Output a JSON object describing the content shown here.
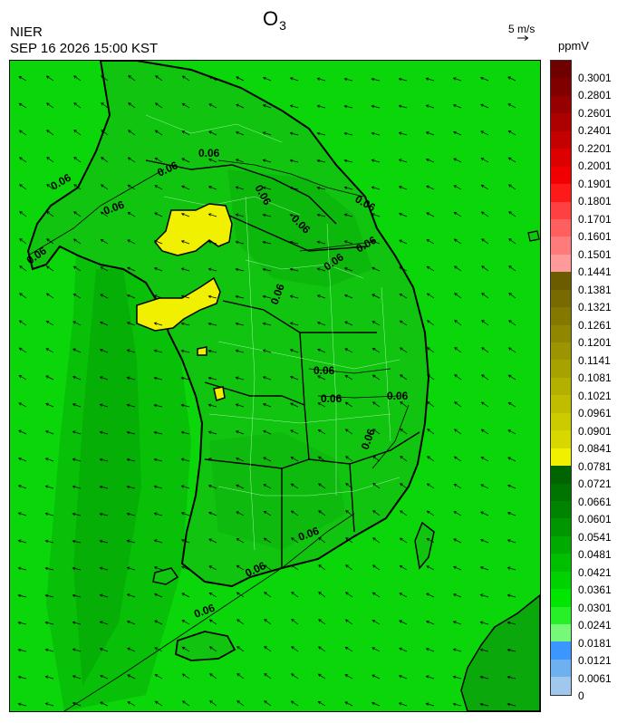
{
  "header": {
    "organization": "NIER",
    "datetime": "SEP 16 2026 15:00 KST",
    "title_main": "O",
    "title_sub": "3",
    "wind_reference": "5 m/s",
    "unit": "ppmV"
  },
  "colorbar": {
    "colors": [
      "#6e0000",
      "#800000",
      "#960000",
      "#ad0000",
      "#c40000",
      "#dc0000",
      "#f00000",
      "#ff1a1a",
      "#ff4040",
      "#ff5f5f",
      "#ff7a7a",
      "#ff9a9a",
      "#6b5c00",
      "#786a00",
      "#847800",
      "#908600",
      "#9c9400",
      "#a8a200",
      "#b4b000",
      "#c0bd00",
      "#cccb00",
      "#d8d800",
      "#f0f000",
      "#006400",
      "#007400",
      "#008400",
      "#009600",
      "#00aa00",
      "#00be00",
      "#00d200",
      "#00e600",
      "#28f028",
      "#78f878",
      "#3c96ff",
      "#6eb0f0",
      "#a0c8ec"
    ],
    "labels": [
      "0.3001",
      "0.2801",
      "0.2601",
      "0.2401",
      "0.2201",
      "0.2001",
      "0.1901",
      "0.1801",
      "0.1701",
      "0.1601",
      "0.1501",
      "0.1441",
      "0.1381",
      "0.1321",
      "0.1261",
      "0.1201",
      "0.1141",
      "0.1081",
      "0.1021",
      "0.0961",
      "0.0901",
      "0.0841",
      "0.0781",
      "0.0721",
      "0.0661",
      "0.0601",
      "0.0541",
      "0.0481",
      "0.0421",
      "0.0361",
      "0.0301",
      "0.0241",
      "0.0181",
      "0.0121",
      "0.0061",
      "0"
    ]
  },
  "map": {
    "background_color": "#0ad60a",
    "contour_label": "0.06"
  }
}
